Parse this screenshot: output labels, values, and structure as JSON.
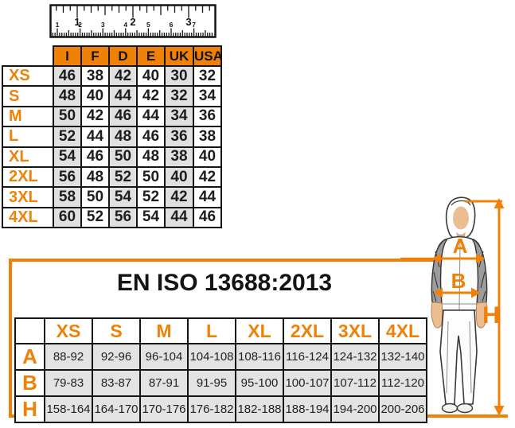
{
  "colors": {
    "accent": "#EF8109",
    "grid": "#151515",
    "cell_shade": "#E0E0E0",
    "iso_cell_shade": "#E3E3E3",
    "skin": "#EDBD92"
  },
  "ruler": {
    "inch_labels": [
      "1",
      "2",
      "3"
    ],
    "cm_labels": [
      "1",
      "2",
      "3",
      "4",
      "5",
      "6",
      "7"
    ]
  },
  "chart_data": [
    {
      "type": "table",
      "columns": [
        "I",
        "F",
        "D",
        "E",
        "UK",
        "USA"
      ],
      "row_labels": [
        "XS",
        "S",
        "M",
        "L",
        "XL",
        "2XL",
        "3XL",
        "4XL"
      ],
      "rows": [
        [
          46,
          38,
          42,
          40,
          30,
          32
        ],
        [
          48,
          40,
          44,
          42,
          32,
          34
        ],
        [
          50,
          42,
          46,
          44,
          34,
          36
        ],
        [
          52,
          44,
          48,
          46,
          36,
          38
        ],
        [
          54,
          46,
          50,
          48,
          38,
          40
        ],
        [
          56,
          48,
          52,
          50,
          40,
          42
        ],
        [
          58,
          50,
          54,
          52,
          42,
          44
        ],
        [
          60,
          52,
          56,
          54,
          44,
          46
        ]
      ]
    },
    {
      "type": "table",
      "title": "EN ISO 13688:2013",
      "columns": [
        "XS",
        "S",
        "M",
        "L",
        "XL",
        "2XL",
        "3XL",
        "4XL"
      ],
      "row_labels": [
        "A",
        "B",
        "H"
      ],
      "rows": [
        [
          "88-92",
          "92-96",
          "96-104",
          "104-108",
          "108-116",
          "116-124",
          "124-132",
          "132-140"
        ],
        [
          "79-83",
          "83-87",
          "87-91",
          "91-95",
          "95-100",
          "100-107",
          "107-112",
          "112-120"
        ],
        [
          "158-164",
          "164-170",
          "170-176",
          "176-182",
          "182-188",
          "188-194",
          "194-200",
          "200-206"
        ]
      ]
    }
  ],
  "figure": {
    "chest_label": "A",
    "waist_label": "B",
    "height_label": "H"
  }
}
